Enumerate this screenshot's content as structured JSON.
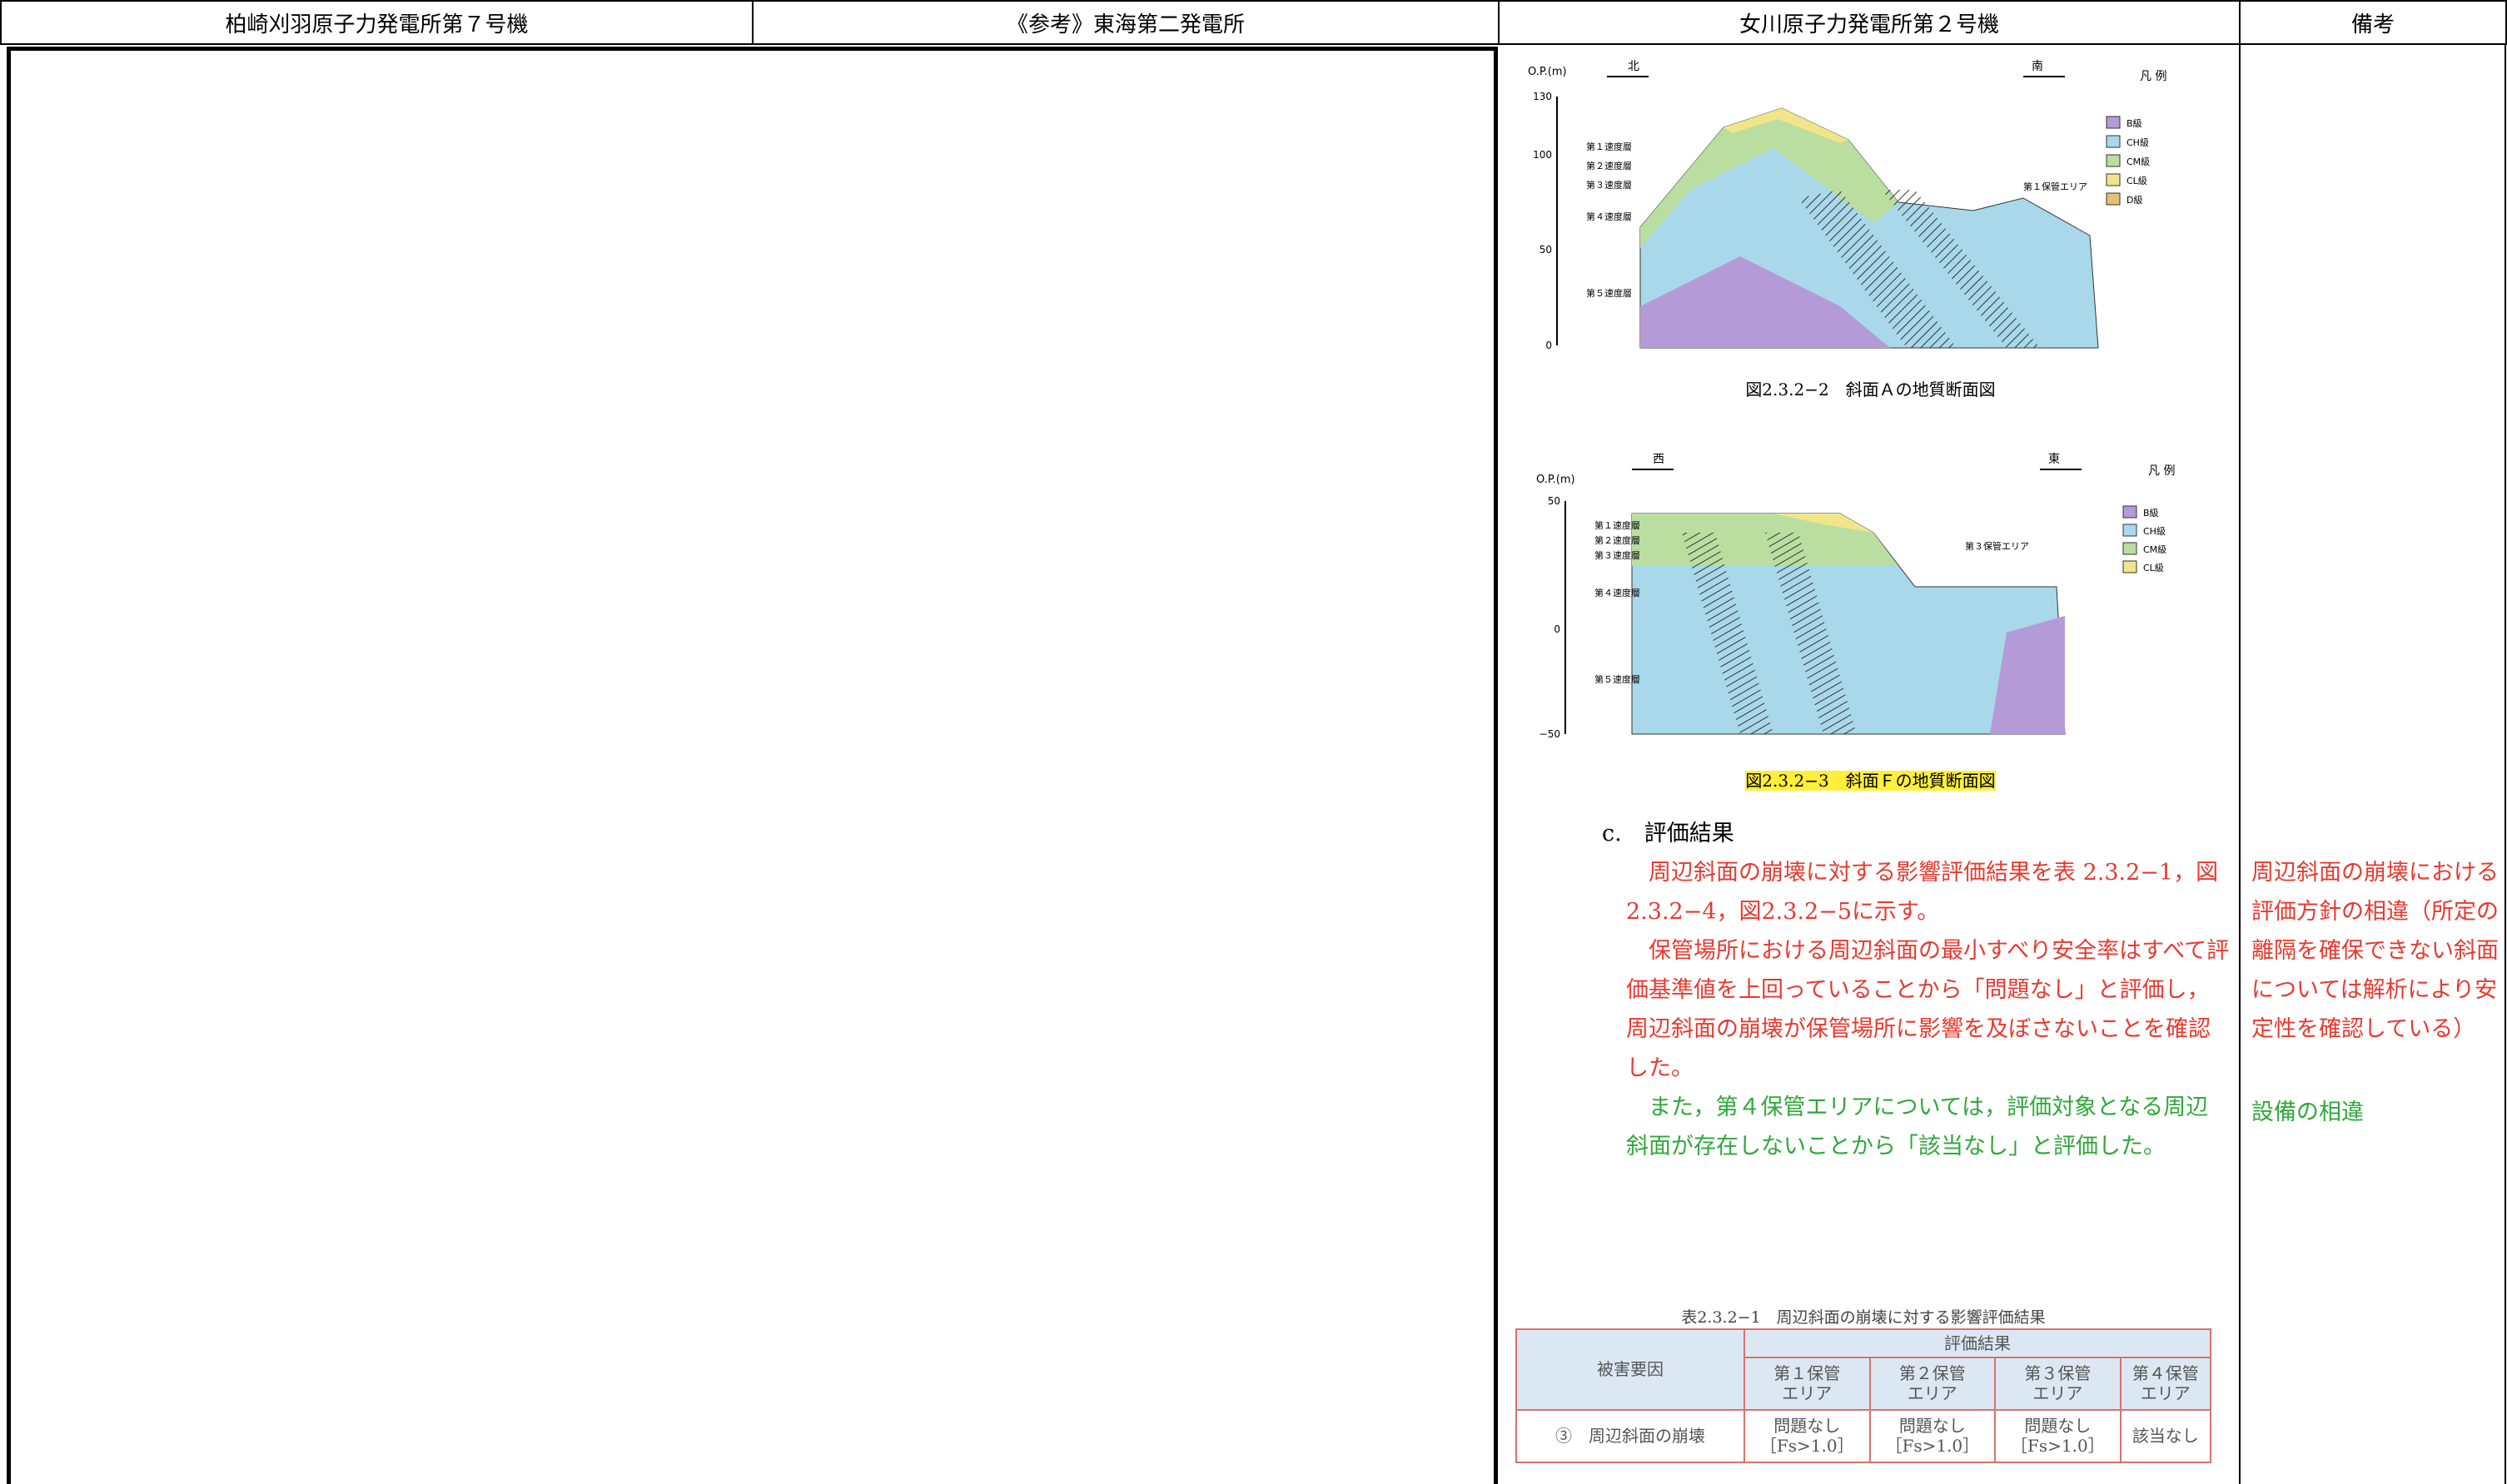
{
  "header": {
    "col1": "柏崎刈羽原子力発電所第７号機",
    "col2": "《参考》東海第二発電所",
    "col3": "女川原子力発電所第２号機",
    "col4": "備考"
  },
  "figure1": {
    "axis_label": "O.P.(m)",
    "ticks": [
      "130",
      "100",
      "50",
      "0"
    ],
    "left_dir": "北",
    "right_dir": "南",
    "legend_title": "凡 例",
    "legend_items": [
      "B級",
      "CH級",
      "CM級",
      "CL級",
      "D級"
    ],
    "layers": [
      "第１速度層",
      "第２速度層",
      "第３速度層",
      "第４速度層",
      "第５速度層"
    ],
    "area_label": "第１保管エリア",
    "caption": "図2.3.2−2　斜面Ａの地質断面図"
  },
  "figure2": {
    "axis_label": "O.P.(m)",
    "ticks": [
      "50",
      "0",
      "−50"
    ],
    "left_dir": "西",
    "right_dir": "東",
    "legend_title": "凡 例",
    "legend_items": [
      "B級",
      "CH級",
      "CM級",
      "CL級"
    ],
    "layers": [
      "第１速度層",
      "第２速度層",
      "第３速度層",
      "第４速度層",
      "第５速度層"
    ],
    "area_label": "第３保管エリア",
    "caption": "図2.3.2−3　斜面Ｆの地質断面図"
  },
  "section": {
    "heading": "c.　評価結果",
    "paragraphs": [
      "周辺斜面の崩壊に対する影響評価結果を表 2.3.2−1，図2.3.2−4，図2.3.2−5に示す。",
      "保管場所における周辺斜面の最小すべり安全率はすべて評価基準値を上回っていることから「問題なし」と評価し，周辺斜面の崩壊が保管場所に影響を及ぼさないことを確認した。",
      "また，第４保管エリアについては，評価対象となる周辺斜面が存在しないことから「該当なし」と評価した。"
    ]
  },
  "table": {
    "caption": "表2.3.2−1　周辺斜面の崩壊に対する影響評価結果",
    "header_factor": "被害要因",
    "header_result": "評価結果",
    "columns": [
      "第１保管\nエリア",
      "第２保管\nエリア",
      "第３保管\nエリア",
      "第４保管\nエリア"
    ],
    "rows": [
      [
        "③　周辺斜面の崩壊",
        "問題なし\n［Fs>1.0］",
        "問題なし\n［Fs>1.0］",
        "問題なし\n［Fs>1.0］",
        "該当なし"
      ]
    ]
  },
  "remarks": [
    "周辺斜面の崩壊における評価方針の相違（所定の離隔を確保できない斜面については解析により安定性を確認している）",
    "設備の相違"
  ]
}
